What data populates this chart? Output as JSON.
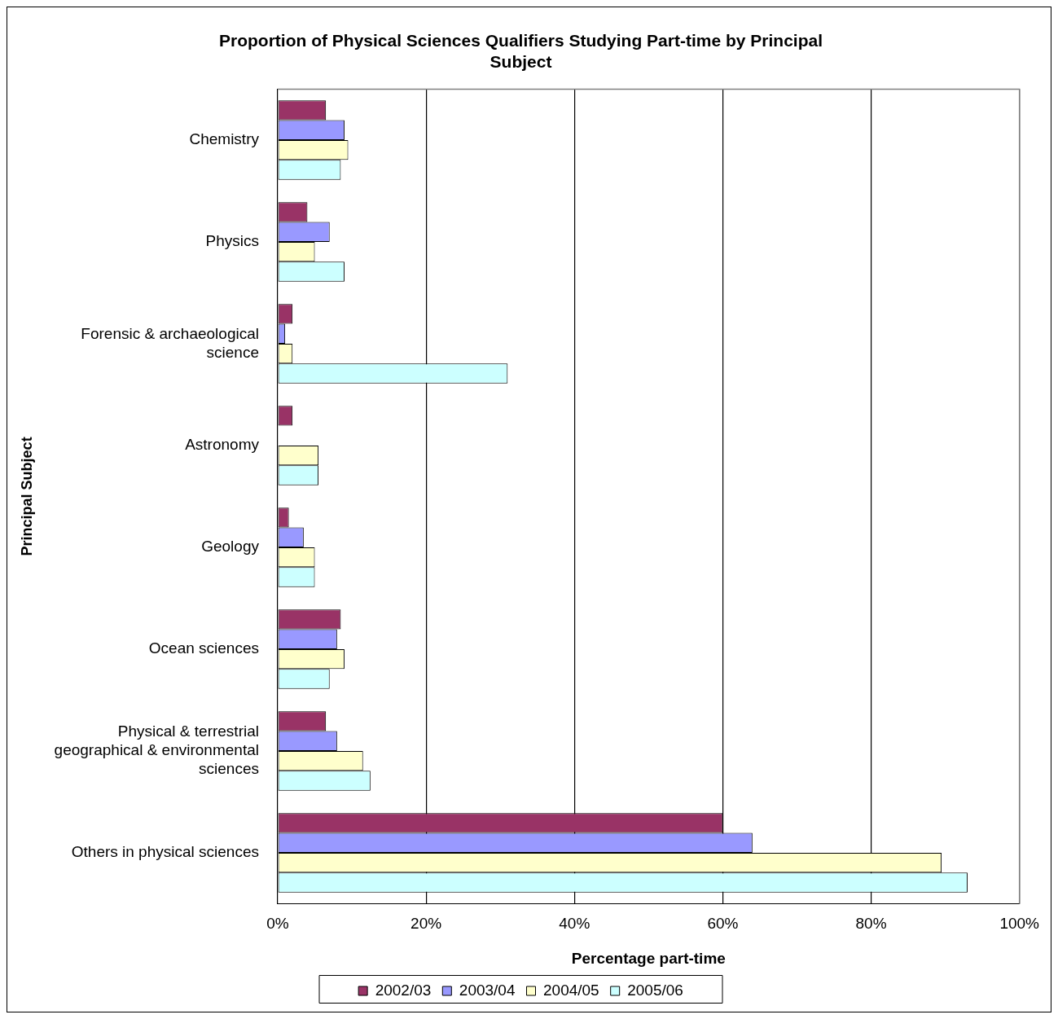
{
  "chart_data": {
    "type": "bar",
    "orientation": "horizontal",
    "title": "Proportion of Physical Sciences Qualifiers Studying Part-time by Principal Subject",
    "xlabel": "Percentage part-time",
    "ylabel": "Principal Subject",
    "categories": [
      "Chemistry",
      "Physics",
      "Forensic & archaeological science",
      "Astronomy",
      "Geology",
      "Ocean sciences",
      "Physical & terrestrial geographical & environmental sciences",
      "Others in physical sciences"
    ],
    "series": [
      {
        "name": "2002/03",
        "color": "#993366",
        "values": [
          6.5,
          4,
          2,
          2,
          1.5,
          8.5,
          6.5,
          60
        ]
      },
      {
        "name": "2003/04",
        "color": "#9999ff",
        "values": [
          9,
          7,
          1,
          null,
          3.5,
          8,
          8,
          64
        ]
      },
      {
        "name": "2004/05",
        "color": "#ffffcc",
        "values": [
          9.5,
          5,
          2,
          5.5,
          5,
          9,
          11.5,
          89.5
        ]
      },
      {
        "name": "2005/06",
        "color": "#ccffff",
        "values": [
          8.5,
          9,
          31,
          5.5,
          5,
          7,
          12.5,
          93
        ]
      }
    ],
    "xlim": [
      0,
      100
    ],
    "xticks": [
      {
        "value": 0,
        "label": "0%"
      },
      {
        "value": 20,
        "label": "20%"
      },
      {
        "value": 40,
        "label": "40%"
      },
      {
        "value": 60,
        "label": "60%"
      },
      {
        "value": 80,
        "label": "80%"
      },
      {
        "value": 100,
        "label": "100%"
      }
    ],
    "grid": "x",
    "legend": "bottom"
  }
}
